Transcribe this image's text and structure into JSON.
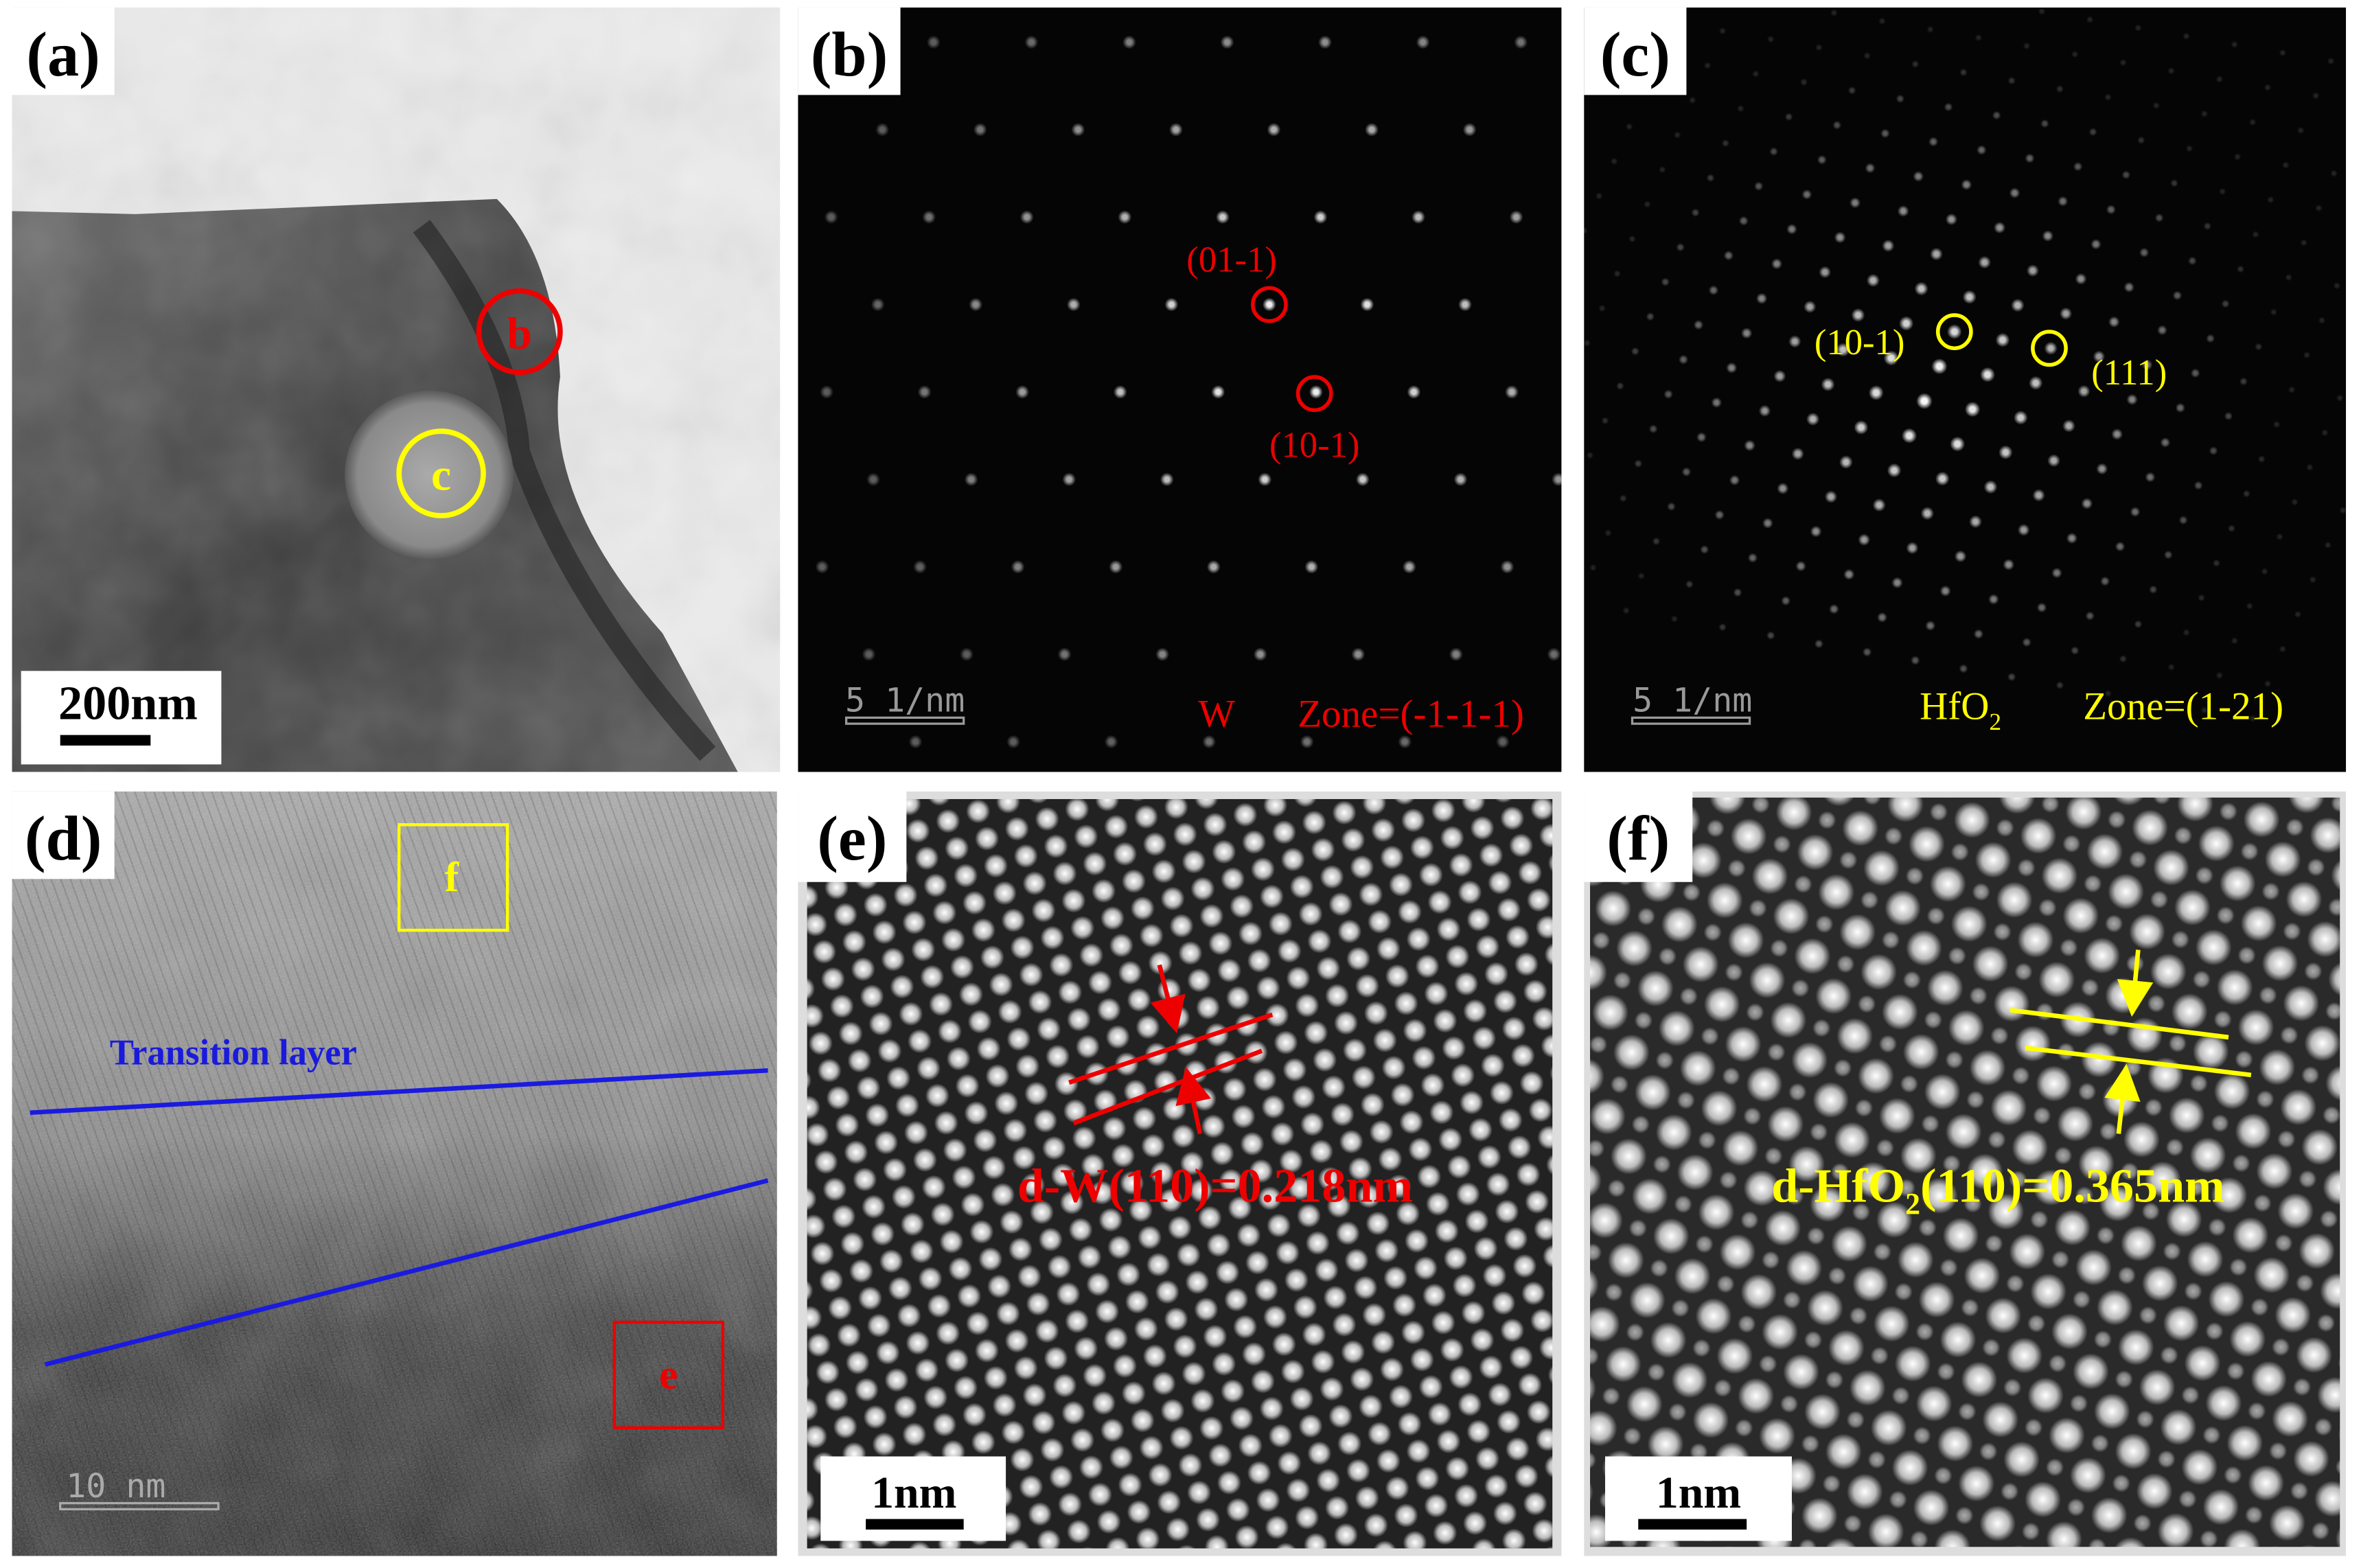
{
  "panels": [
    {
      "label": "(a)",
      "annotations": [
        "b",
        "c"
      ],
      "scale_bar": "200nm"
    },
    {
      "label": "(b)",
      "spots": [
        "(01-1)",
        "(10-1)"
      ],
      "scale_bar": "5 1/nm",
      "phase": "W",
      "zone": "Zone=(-1-1-1)"
    },
    {
      "label": "(c)",
      "spots": [
        "(10-1)",
        "(111)"
      ],
      "scale_bar": "5 1/nm",
      "phase": {
        "text": "HfO",
        "sub": "2"
      },
      "zone": "Zone=(1-21)"
    },
    {
      "label": "(d)",
      "annotations": [
        "f",
        "e"
      ],
      "layer": "Transition layer",
      "scale_bar": "10 nm"
    },
    {
      "label": "(e)",
      "spacing": "d-W(110)=0.218nm",
      "scale_bar": "1nm"
    },
    {
      "label": "(f)",
      "spacing": {
        "text": "d-HfO",
        "sub": "2",
        "rest": "(110)=0.365nm"
      },
      "scale_bar": "1nm"
    }
  ]
}
